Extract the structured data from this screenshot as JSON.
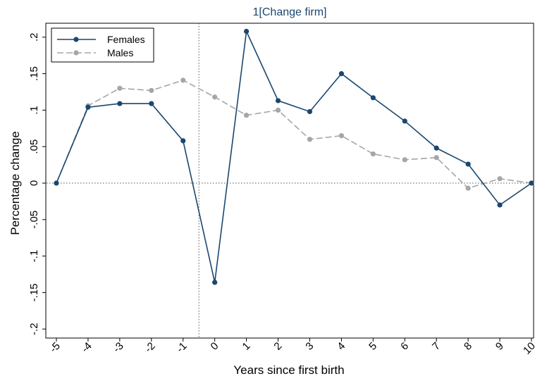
{
  "chart_data": {
    "type": "line",
    "title": "1[Change firm]",
    "xlabel": "Years since first birth",
    "ylabel": "Percentage change",
    "x": [
      -5,
      -4,
      -3,
      -2,
      -1,
      0,
      1,
      2,
      3,
      4,
      5,
      6,
      7,
      8,
      9,
      10
    ],
    "x_tick_labels": [
      "-5",
      "-4",
      "-3",
      "-2",
      "-1",
      "0",
      "1",
      "2",
      "3",
      "4",
      "5",
      "6",
      "7",
      "8",
      "9",
      "10"
    ],
    "y_ticks": [
      -0.2,
      -0.15,
      -0.1,
      -0.05,
      0,
      0.05,
      0.1,
      0.15,
      0.2
    ],
    "y_tick_labels": [
      "-.2",
      "-.15",
      "-.1",
      "-.05",
      "0",
      ".05",
      ".1",
      ".15",
      ".2"
    ],
    "xlim": [
      -5,
      10
    ],
    "ylim": [
      -0.2,
      0.21
    ],
    "series": [
      {
        "name": "Females",
        "color": "#1a476f",
        "style": "solid",
        "values": [
          0.0,
          0.104,
          0.109,
          0.109,
          0.058,
          -0.136,
          0.208,
          0.113,
          0.098,
          0.15,
          0.117,
          0.085,
          0.048,
          0.026,
          -0.03,
          0.0
        ]
      },
      {
        "name": "Males",
        "color": "#a6a6a6",
        "style": "dashed",
        "values": [
          0.0,
          0.106,
          0.13,
          0.127,
          0.141,
          0.118,
          0.093,
          0.1,
          0.06,
          0.065,
          0.04,
          0.032,
          0.035,
          -0.007,
          0.006,
          0.0
        ]
      }
    ],
    "reference_lines": {
      "vertical_x": -0.5,
      "horizontal_y": 0
    },
    "legend": {
      "placement": "top-left"
    },
    "grid": false
  }
}
